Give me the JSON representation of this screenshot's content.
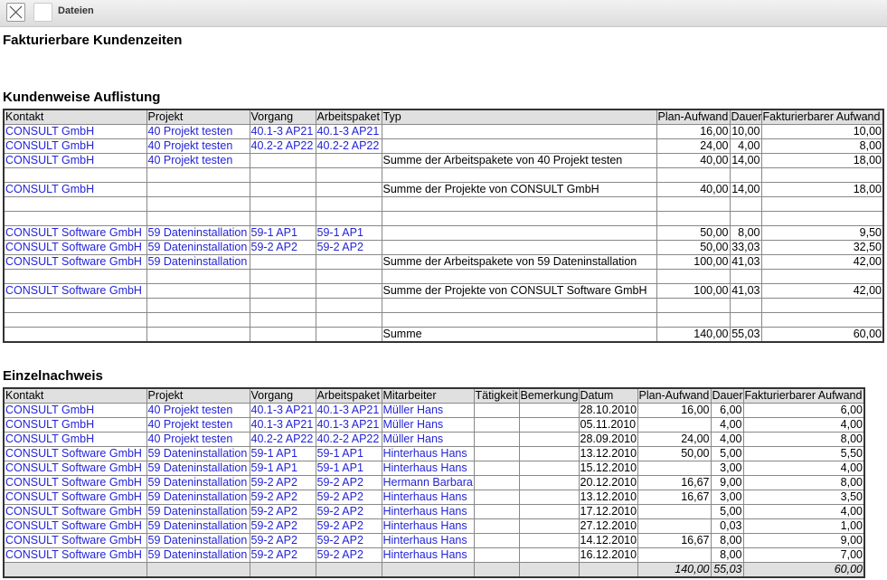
{
  "toolbar": {
    "title": "Dateien",
    "close_icon": "close-icon"
  },
  "page_title": "Fakturierbare Kundenzeiten",
  "colors": {
    "link": "#2323d9",
    "header_bg": "#e0e0e0"
  },
  "summary": {
    "title": "Kundenweise Auflistung",
    "columns": [
      "Kontakt",
      "Projekt",
      "Vorgang",
      "Arbeitspaket",
      "Typ",
      "Plan-Aufwand",
      "Dauer",
      "Fakturierbarer Aufwand"
    ],
    "rows": [
      [
        "CONSULT GmbH",
        "40 Projekt testen",
        "40.1-3 AP21",
        "40.1-3 AP21",
        "",
        "16,00",
        "10,00",
        "10,00"
      ],
      [
        "CONSULT GmbH",
        "40 Projekt testen",
        "40.2-2 AP22",
        "40.2-2 AP22",
        "",
        "24,00",
        "4,00",
        "8,00"
      ],
      [
        "CONSULT GmbH",
        "40 Projekt testen",
        "",
        "",
        "Summe der Arbeitspakete von 40 Projekt testen",
        "40,00",
        "14,00",
        "18,00"
      ],
      [
        "",
        "",
        "",
        "",
        "",
        "",
        "",
        ""
      ],
      [
        "CONSULT GmbH",
        "",
        "",
        "",
        "Summe der Projekte von CONSULT GmbH",
        "40,00",
        "14,00",
        "18,00"
      ],
      [
        "",
        "",
        "",
        "",
        "",
        "",
        "",
        ""
      ],
      [
        "",
        "",
        "",
        "",
        "",
        "",
        "",
        ""
      ],
      [
        "CONSULT Software GmbH",
        "59 Dateninstallation",
        "59-1 AP1",
        "59-1 AP1",
        "",
        "50,00",
        "8,00",
        "9,50"
      ],
      [
        "CONSULT Software GmbH",
        "59 Dateninstallation",
        "59-2 AP2",
        "59-2 AP2",
        "",
        "50,00",
        "33,03",
        "32,50"
      ],
      [
        "CONSULT Software GmbH",
        "59 Dateninstallation",
        "",
        "",
        "Summe der Arbeitspakete von 59 Dateninstallation",
        "100,00",
        "41,03",
        "42,00"
      ],
      [
        "",
        "",
        "",
        "",
        "",
        "",
        "",
        ""
      ],
      [
        "CONSULT Software GmbH",
        "",
        "",
        "",
        "Summe der Projekte von CONSULT Software GmbH",
        "100,00",
        "41,03",
        "42,00"
      ],
      [
        "",
        "",
        "",
        "",
        "",
        "",
        "",
        ""
      ],
      [
        "",
        "",
        "",
        "",
        "",
        "",
        "",
        ""
      ],
      [
        "",
        "",
        "",
        "",
        "Summe",
        "140,00",
        "55,03",
        "60,00"
      ]
    ]
  },
  "detail": {
    "title": "Einzelnachweis",
    "columns": [
      "Kontakt",
      "Projekt",
      "Vorgang",
      "Arbeitspaket",
      "Mitarbeiter",
      "Tätigkeit",
      "Bemerkung",
      "Datum",
      "Plan-Aufwand",
      "Dauer",
      "Fakturierbarer Aufwand"
    ],
    "rows": [
      [
        "CONSULT GmbH",
        "40 Projekt testen",
        "40.1-3 AP21",
        "40.1-3 AP21",
        "Müller Hans",
        "",
        "",
        "28.10.2010",
        "16,00",
        "6,00",
        "6,00"
      ],
      [
        "CONSULT GmbH",
        "40 Projekt testen",
        "40.1-3 AP21",
        "40.1-3 AP21",
        "Müller Hans",
        "",
        "",
        "05.11.2010",
        "",
        "4,00",
        "4,00"
      ],
      [
        "CONSULT GmbH",
        "40 Projekt testen",
        "40.2-2 AP22",
        "40.2-2 AP22",
        "Müller Hans",
        "",
        "",
        "28.09.2010",
        "24,00",
        "4,00",
        "8,00"
      ],
      [
        "CONSULT Software GmbH",
        "59 Dateninstallation",
        "59-1 AP1",
        "59-1 AP1",
        "Hinterhaus Hans",
        "",
        "",
        "13.12.2010",
        "50,00",
        "5,00",
        "5,50"
      ],
      [
        "CONSULT Software GmbH",
        "59 Dateninstallation",
        "59-1 AP1",
        "59-1 AP1",
        "Hinterhaus Hans",
        "",
        "",
        "15.12.2010",
        "",
        "3,00",
        "4,00"
      ],
      [
        "CONSULT Software GmbH",
        "59 Dateninstallation",
        "59-2 AP2",
        "59-2 AP2",
        "Hermann Barbara",
        "",
        "",
        "20.12.2010",
        "16,67",
        "9,00",
        "8,00"
      ],
      [
        "CONSULT Software GmbH",
        "59 Dateninstallation",
        "59-2 AP2",
        "59-2 AP2",
        "Hinterhaus Hans",
        "",
        "",
        "13.12.2010",
        "16,67",
        "3,00",
        "3,50"
      ],
      [
        "CONSULT Software GmbH",
        "59 Dateninstallation",
        "59-2 AP2",
        "59-2 AP2",
        "Hinterhaus Hans",
        "",
        "",
        "17.12.2010",
        "",
        "5,00",
        "4,00"
      ],
      [
        "CONSULT Software GmbH",
        "59 Dateninstallation",
        "59-2 AP2",
        "59-2 AP2",
        "Hinterhaus Hans",
        "",
        "",
        "27.12.2010",
        "",
        "0,03",
        "1,00"
      ],
      [
        "CONSULT Software GmbH",
        "59 Dateninstallation",
        "59-2 AP2",
        "59-2 AP2",
        "Hinterhaus Hans",
        "",
        "",
        "14.12.2010",
        "16,67",
        "8,00",
        "9,00"
      ],
      [
        "CONSULT Software GmbH",
        "59 Dateninstallation",
        "59-2 AP2",
        "59-2 AP2",
        "Hinterhaus Hans",
        "",
        "",
        "16.12.2010",
        "",
        "8,00",
        "7,00"
      ]
    ],
    "totals": [
      "",
      "",
      "",
      "",
      "",
      "",
      "",
      "",
      "140,00",
      "55,03",
      "60,00"
    ]
  }
}
